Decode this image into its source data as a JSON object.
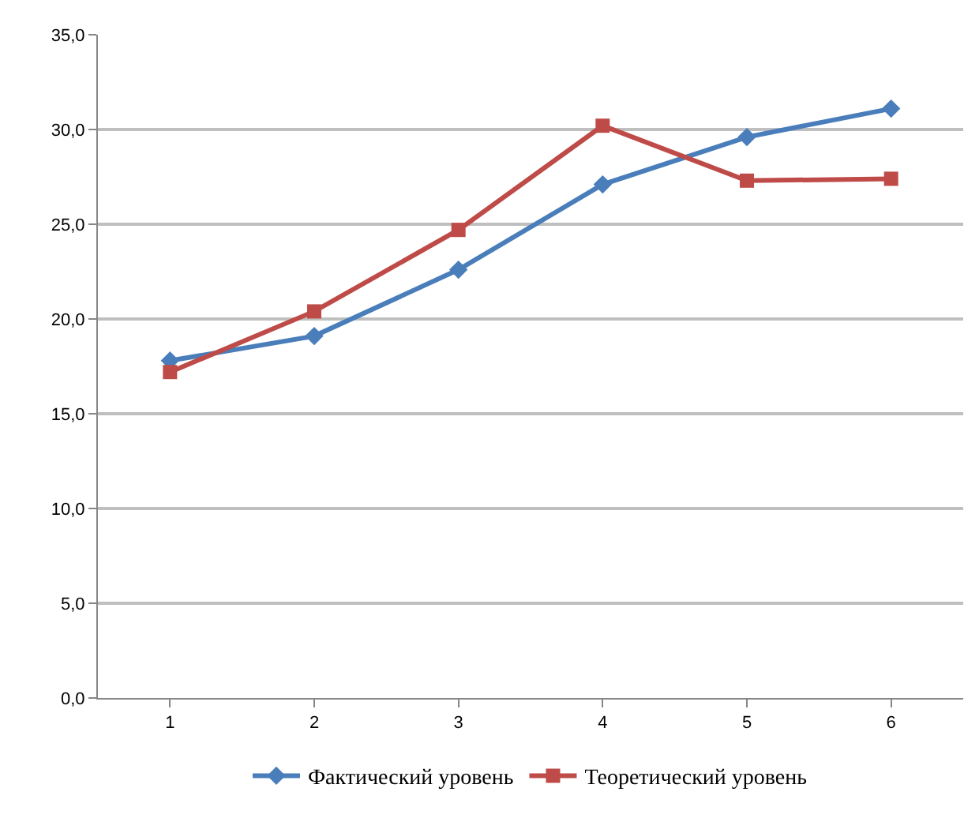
{
  "chart_data": {
    "type": "line",
    "categories": [
      "1",
      "2",
      "3",
      "4",
      "5",
      "6"
    ],
    "series": [
      {
        "name": "Фактический уровень",
        "color": "#4a7ebb",
        "marker": "diamond",
        "values": [
          17.8,
          19.1,
          22.6,
          27.1,
          29.6,
          31.1
        ]
      },
      {
        "name": "Теоретический уровень",
        "color": "#be4b48",
        "marker": "square",
        "values": [
          17.2,
          20.4,
          24.7,
          30.2,
          27.3,
          27.4
        ]
      }
    ],
    "ylim": [
      0,
      35
    ],
    "yticks": [
      {
        "value": 0,
        "label": "0,0"
      },
      {
        "value": 5,
        "label": "5,0"
      },
      {
        "value": 10,
        "label": "10,0"
      },
      {
        "value": 15,
        "label": "15,0"
      },
      {
        "value": 20,
        "label": "20,0"
      },
      {
        "value": 25,
        "label": "25,0"
      },
      {
        "value": 30,
        "label": "30,0"
      },
      {
        "value": 35,
        "label": "35,0"
      }
    ],
    "grid": "y",
    "legend": "bottom",
    "line_style": "solid"
  }
}
